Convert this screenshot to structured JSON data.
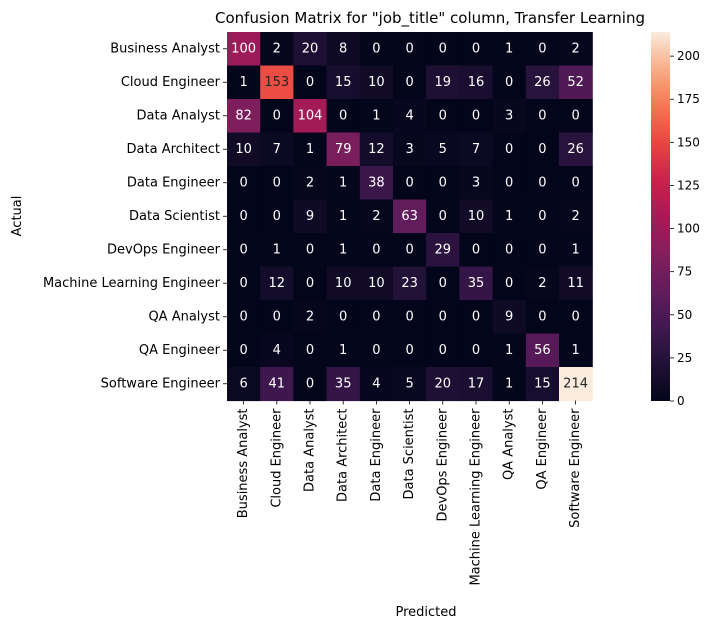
{
  "chart_data": {
    "type": "heatmap",
    "title": "Confusion Matrix for \"job_title\" column, Transfer Learning",
    "xlabel": "Predicted",
    "ylabel": "Actual",
    "rows": [
      "Business Analyst",
      "Cloud Engineer",
      "Data Analyst",
      "Data Architect",
      "Data Engineer",
      "Data Scientist",
      "DevOps Engineer",
      "Machine Learning Engineer",
      "QA Analyst",
      "QA Engineer",
      "Software Engineer"
    ],
    "columns": [
      "Business Analyst",
      "Cloud Engineer",
      "Data Analyst",
      "Data Architect",
      "Data Engineer",
      "Data Scientist",
      "DevOps Engineer",
      "Machine Learning Engineer",
      "QA Analyst",
      "QA Engineer",
      "Software Engineer"
    ],
    "values": [
      [
        100,
        2,
        20,
        8,
        0,
        0,
        0,
        0,
        1,
        0,
        2
      ],
      [
        1,
        153,
        0,
        15,
        10,
        0,
        19,
        16,
        0,
        26,
        52
      ],
      [
        82,
        0,
        104,
        0,
        1,
        4,
        0,
        0,
        3,
        0,
        0
      ],
      [
        10,
        7,
        1,
        79,
        12,
        3,
        5,
        7,
        0,
        0,
        26
      ],
      [
        0,
        0,
        2,
        1,
        38,
        0,
        0,
        3,
        0,
        0,
        0
      ],
      [
        0,
        0,
        9,
        1,
        2,
        63,
        0,
        10,
        1,
        0,
        2
      ],
      [
        0,
        1,
        0,
        1,
        0,
        0,
        29,
        0,
        0,
        0,
        1
      ],
      [
        0,
        12,
        0,
        10,
        10,
        23,
        0,
        35,
        0,
        2,
        11
      ],
      [
        0,
        0,
        2,
        0,
        0,
        0,
        0,
        0,
        9,
        0,
        0
      ],
      [
        0,
        4,
        0,
        1,
        0,
        0,
        0,
        0,
        1,
        56,
        1
      ],
      [
        6,
        41,
        0,
        35,
        4,
        5,
        20,
        17,
        1,
        15,
        214
      ]
    ],
    "colormap": "rocket",
    "vmin": 0,
    "vmax": 214,
    "colorbar_ticks": [
      0,
      25,
      50,
      75,
      100,
      125,
      150,
      175,
      200
    ],
    "colorbar": "right",
    "grid": false
  }
}
